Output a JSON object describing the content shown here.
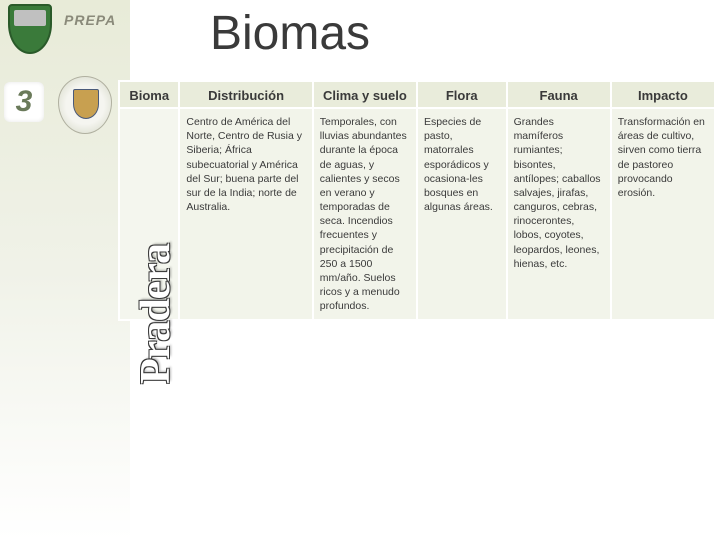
{
  "header": {
    "prepa_label": "PREPA",
    "level_number": "3",
    "title": "Biomas"
  },
  "bioma_vertical_label": "Pradera",
  "table": {
    "columns": [
      {
        "key": "bioma",
        "label": "Bioma"
      },
      {
        "key": "dist",
        "label": "Distribución"
      },
      {
        "key": "clima",
        "label": "Clima y suelo"
      },
      {
        "key": "flora",
        "label": "Flora"
      },
      {
        "key": "fauna",
        "label": "Fauna"
      },
      {
        "key": "imp",
        "label": "Impacto"
      }
    ],
    "rows": [
      {
        "bioma": "",
        "dist": "Centro de América del Norte, Centro de Rusia y Siberia; África subecuatorial y América del Sur; buena parte del sur de la India; norte de Australia.",
        "clima": "Temporales, con lluvias abundantes durante la época de aguas, y calientes y secos en verano y temporadas de seca. Incendios frecuentes y precipitación de 250 a 1500 mm/año. Suelos ricos y a menudo profundos.",
        "flora": "Especies de pasto, matorrales esporádicos y ocasiona-les bosques en algunas áreas.",
        "fauna": "Grandes mamíferos rumiantes; bisontes, antílopes; caballos salvajes, jirafas, canguros, cebras, rinocerontes, lobos, coyotes, leopardos, leones, hienas, etc.",
        "imp": "Transformación en áreas de cultivo, sirven como tierra de pastoreo provocando erosión."
      }
    ]
  },
  "colors": {
    "header_bg": "#e9ecdb",
    "cell_bg": "#f2f4ea",
    "border": "#ffffff",
    "text": "#3a3a3a"
  }
}
